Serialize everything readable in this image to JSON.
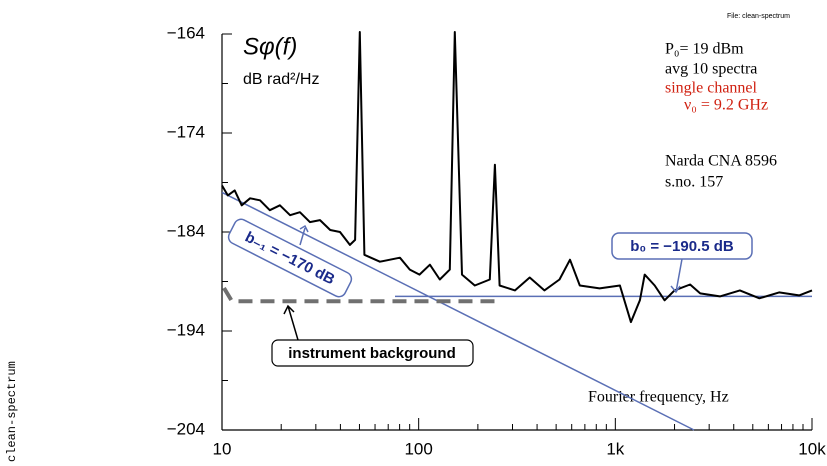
{
  "chart_data": {
    "type": "line",
    "title": "Sφ(f)",
    "y_label": "dB rad²/Hz",
    "x_label": "Fourier frequency, Hz",
    "xscale": "log",
    "xlim": [
      10,
      10000
    ],
    "ylim": [
      -204,
      -164
    ],
    "xticks": [
      10,
      100,
      {
        "value": 1000,
        "label": "1k"
      },
      {
        "value": 10000,
        "label": "10k"
      }
    ],
    "yticks": [
      {
        "value": -164,
        "label": "−164"
      },
      {
        "value": -174,
        "label": "−174"
      },
      {
        "value": -184,
        "label": "−184"
      },
      {
        "value": -194,
        "label": "−194"
      },
      {
        "value": -204,
        "label": "−204"
      }
    ],
    "color": "#000000",
    "x": [
      10,
      10.7,
      11.6,
      12.6,
      13.9,
      15.6,
      17.5,
      19.7,
      22.2,
      24.9,
      28,
      31.5,
      35.5,
      39.8,
      44.7,
      47.5,
      50.2,
      53,
      63.5,
      80.3,
      90.1,
      101,
      114,
      128,
      144,
      152.7,
      166,
      193,
      230,
      244,
      258,
      309,
      367,
      436,
      520,
      588,
      660,
      832,
      1055,
      1200,
      1334,
      1410,
      1585,
      1780,
      2000,
      2400,
      2700,
      3400,
      4300,
      5400,
      6800,
      8600,
      10000
    ],
    "values": [
      -179.3,
      -180.3,
      -179.8,
      -181.3,
      -180.6,
      -180.8,
      -181.8,
      -181.3,
      -182.3,
      -182.0,
      -183.0,
      -182.8,
      -183.8,
      -184.0,
      -185.3,
      -184.8,
      -163.8,
      -186.3,
      -187.0,
      -186.6,
      -187.8,
      -188.3,
      -187.3,
      -188.8,
      -187.8,
      -163.8,
      -188.3,
      -189.4,
      -188.8,
      -177.2,
      -189.4,
      -189.9,
      -188.6,
      -189.9,
      -188.8,
      -186.8,
      -189.4,
      -189.7,
      -189.4,
      -193.1,
      -190.9,
      -188.3,
      -189.4,
      -190.9,
      -189.9,
      -189.3,
      -190.2,
      -190.5,
      -189.9,
      -190.7,
      -190.1,
      -190.4,
      -189.9
    ],
    "fits": [
      {
        "value": -170,
        "label": "b₋₁ = −170 dB",
        "color": "#5a6fb5"
      },
      {
        "value": -190.5,
        "label": "b₀ = −190.5 dB",
        "color": "#5a6fb5"
      }
    ],
    "background": {
      "value": -191,
      "label": "instrument background",
      "color": "#707070"
    },
    "notes": [
      "P₀= 19 dBm",
      "avg 10 spectra",
      "single channel",
      "ν₀ = 9.2 GHz",
      "Narda CNA 8596",
      "s.no. 157"
    ],
    "file_note": "File: clean-spectrum",
    "side_label": "clean-spectrum"
  }
}
